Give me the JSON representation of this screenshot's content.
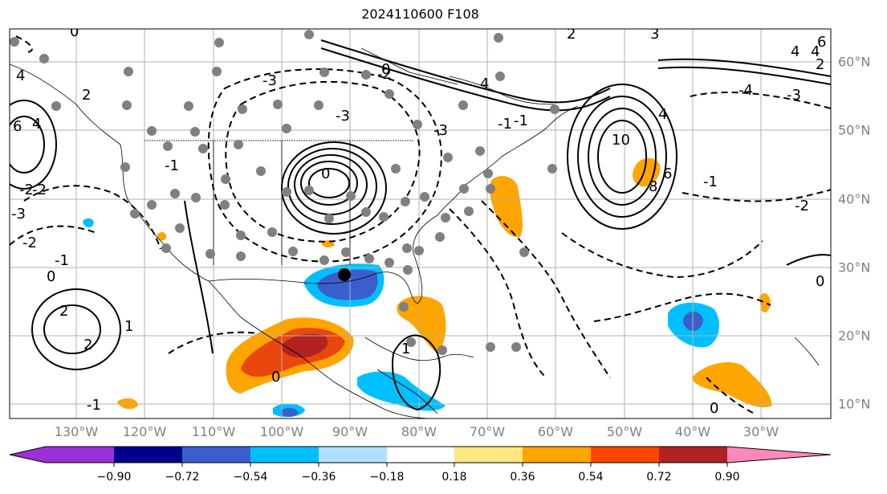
{
  "title": "2024110600 F108",
  "longitude_labels": [
    "130°W",
    "120°W",
    "110°W",
    "100°W",
    "90°W",
    "80°W",
    "70°W",
    "60°W",
    "50°W",
    "40°W",
    "30°W"
  ],
  "latitude_labels": [
    "60°N",
    "50°N",
    "40°N",
    "30°N",
    "20°N",
    "10°N"
  ],
  "colorbar": {
    "ticks": [
      "−0.90",
      "−0.72",
      "−0.54",
      "−0.36",
      "−0.18",
      "0.18",
      "0.36",
      "0.54",
      "0.72",
      "0.90"
    ],
    "colors": [
      "#9b30d9",
      "#00008b",
      "#3a5fcd",
      "#00bfff",
      "#b0e0ff",
      "#ffffff",
      "#ffe680",
      "#ffa500",
      "#ff4500",
      "#b22222",
      "#ff88bb"
    ]
  },
  "contour_labels": [
    "6",
    "4",
    "2",
    "0",
    "-1",
    "-2",
    "-3",
    "4",
    "6",
    "10",
    "8",
    "4",
    "-4",
    "-3",
    "2",
    "0",
    "-1",
    "-2",
    "-3",
    "2",
    "1",
    "0",
    "-1",
    "0",
    "-1",
    "-2",
    "4",
    "2",
    "0",
    "-3",
    "3",
    "2",
    "-3",
    "4",
    "4",
    "6",
    "-2",
    "-2",
    "0",
    "1",
    "-1",
    "-1",
    "0"
  ],
  "colors": {
    "shading_positive": "#ffa500",
    "shading_strong": "#e8470e",
    "shading_max": "#b22222",
    "shading_negative": "#00bfff",
    "shading_neg_strong": "#3a5fcd"
  }
}
